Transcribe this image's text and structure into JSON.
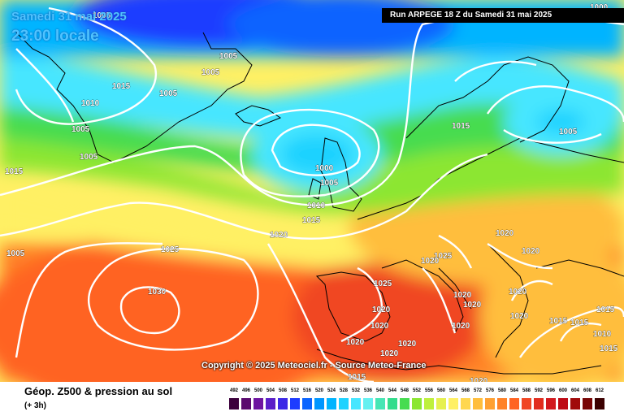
{
  "header": {
    "date": "Samedi 31 mai 2025",
    "time": "23:00 locale",
    "run": "Run ARPEGE 18 Z du Samedi 31 mai 2025"
  },
  "copyright": "Copyright © 2025 Meteociel.fr - Source Meteo-France",
  "footer": {
    "title": "Géop. Z500 & pression au sol",
    "subtitle": "(+ 3h)"
  },
  "scale": {
    "labels": [
      "492",
      "496",
      "500",
      "504",
      "508",
      "512",
      "516",
      "520",
      "524",
      "528",
      "532",
      "536",
      "540",
      "544",
      "548",
      "552",
      "556",
      "560",
      "564",
      "568",
      "572",
      "576",
      "580",
      "584",
      "588",
      "592",
      "596",
      "600",
      "604",
      "608",
      "612"
    ],
    "colors": [
      "#3c003c",
      "#5a0a6e",
      "#6e14a0",
      "#5a1ec8",
      "#3c28e6",
      "#1e3cff",
      "#0a64ff",
      "#0096ff",
      "#00b4ff",
      "#1ed2ff",
      "#46e6ff",
      "#64f0f0",
      "#46e6b4",
      "#32dc8c",
      "#46dc50",
      "#8ce632",
      "#bef03c",
      "#e6f050",
      "#fff064",
      "#ffd750",
      "#ffbe3c",
      "#ffa032",
      "#ff8228",
      "#ff6423",
      "#f04623",
      "#e12d1e",
      "#d2191e",
      "#be0a14",
      "#a00a0a",
      "#780505",
      "#3c0000"
    ]
  },
  "isobars": {
    "labels": [
      "1005",
      "1005",
      "1005",
      "1015",
      "1010",
      "1005",
      "1005",
      "1015",
      "1005",
      "1005",
      "1000",
      "1005",
      "1010",
      "1015",
      "1015",
      "1005",
      "1020",
      "1020",
      "1025",
      "1025",
      "1030",
      "1020",
      "1020",
      "1025",
      "1020",
      "1020",
      "1020",
      "1020",
      "1020",
      "1020",
      "1020",
      "1020",
      "1020",
      "1020",
      "1015",
      "1020",
      "1015",
      "1015",
      "1010",
      "1015",
      "1015",
      "1000"
    ]
  }
}
